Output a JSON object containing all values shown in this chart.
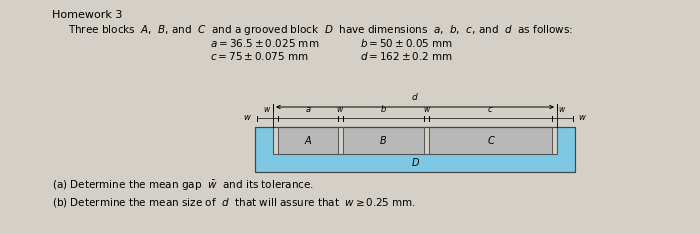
{
  "title": "Homework 3",
  "line1": "Three blocks  $A$,  $B$, and  $C$  and a grooved block  $D$  have dimensions  $a$,  $b$,  $c$, and  $d$  as follows:",
  "eq1a": "$a = 36.5\\pm0.025$ mm",
  "eq1b": "$b = 50\\pm0.05$ mm",
  "eq2a": "$c = 75\\pm0.075$ mm",
  "eq2b": "$d = 162\\pm0.2$ mm",
  "qa": "(a) Determine the mean gap  $\\bar{w}$  and its tolerance.",
  "qb": "(b) Determine the mean size of  $d$  that will assure that  $w\\geq 0.25$ mm.",
  "bg_color": "#d4d0c8",
  "block_color": "#7ec8e3",
  "inner_block_color": "#b8b8b8",
  "white_color": "#e8e8e8",
  "label_A": "A",
  "label_B": "B",
  "label_C": "C",
  "label_D": "D",
  "label_a": "$a$",
  "label_b": "$b$",
  "label_c": "$c$",
  "label_d": "$d$",
  "label_w": "$w$"
}
